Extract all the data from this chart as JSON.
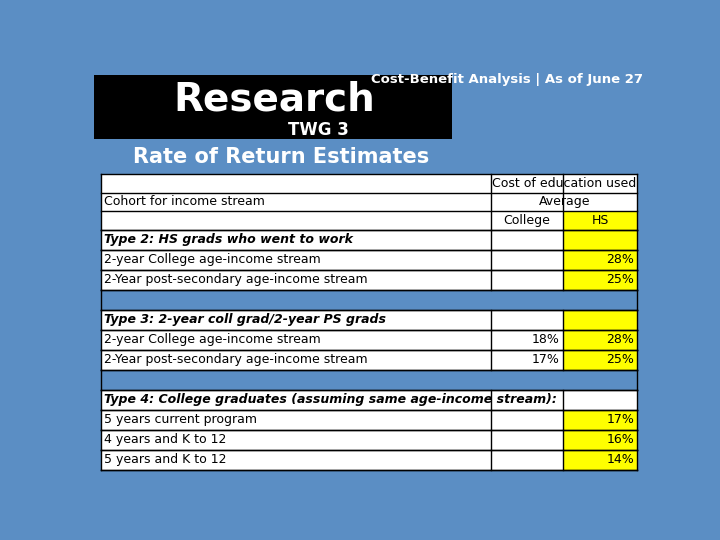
{
  "title_bar": "Cost-Benefit Analysis | As of June 27",
  "header_title": "Research",
  "header_subtitle": "TWG 3",
  "section_title": "Rate of Return Estimates",
  "bg_color": "#5b8ec4",
  "black_box_color": "#000000",
  "yellow_color": "#ffff00",
  "white_color": "#ffffff",
  "black_color": "#000000",
  "rows": [
    {
      "label": "Type 2: HS grads who went to work",
      "college": "",
      "hs": "",
      "bold_italic": true,
      "type2_header": true
    },
    {
      "label": "2-year College age-income stream",
      "college": "",
      "hs": "28%",
      "bold_italic": false
    },
    {
      "label": "2-Year post-secondary age-income stream",
      "college": "",
      "hs": "25%",
      "bold_italic": false
    },
    {
      "label": "",
      "college": "",
      "hs": "",
      "bold_italic": false,
      "spacer": true
    },
    {
      "label": "Type 3: 2-year coll grad/2-year PS grads",
      "college": "",
      "hs": "",
      "bold_italic": true,
      "type3_header": true
    },
    {
      "label": "2-year College age-income stream",
      "college": "18%",
      "hs": "28%",
      "bold_italic": false
    },
    {
      "label": "2-Year post-secondary age-income stream",
      "college": "17%",
      "hs": "25%",
      "bold_italic": false
    },
    {
      "label": "",
      "college": "",
      "hs": "",
      "bold_italic": false,
      "spacer": true
    },
    {
      "label": "Type 4: College graduates (assuming same age-income stream):",
      "college": "",
      "hs": "",
      "bold_italic": true,
      "type4_header": true
    },
    {
      "label": "5 years current program",
      "college": "",
      "hs": "17%",
      "bold_italic": false
    },
    {
      "label": "4 years and K to 12",
      "college": "",
      "hs": "16%",
      "bold_italic": false
    },
    {
      "label": "5 years and K to 12",
      "college": "",
      "hs": "14%",
      "bold_italic": false
    }
  ]
}
